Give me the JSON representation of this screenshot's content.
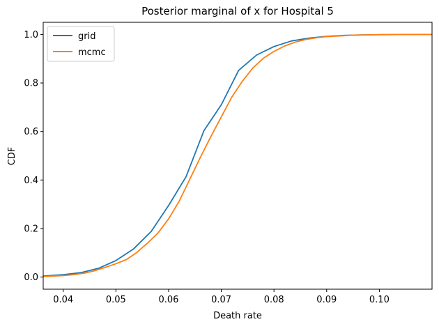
{
  "chart_data": {
    "type": "line",
    "title": "Posterior marginal of x for Hospital 5",
    "xlabel": "Death rate",
    "ylabel": "CDF",
    "xlim": [
      0.0362,
      0.11
    ],
    "ylim": [
      -0.05,
      1.05
    ],
    "xticks": [
      0.04,
      0.05,
      0.06,
      0.07,
      0.08,
      0.09,
      0.1
    ],
    "xtick_labels": [
      "0.04",
      "0.05",
      "0.06",
      "0.07",
      "0.08",
      "0.09",
      "0.10"
    ],
    "yticks": [
      0.0,
      0.2,
      0.4,
      0.6,
      0.8,
      1.0
    ],
    "ytick_labels": [
      "0.0",
      "0.2",
      "0.4",
      "0.6",
      "0.8",
      "1.0"
    ],
    "grid": false,
    "legend_position": "top-left",
    "series": [
      {
        "name": "grid",
        "color": "#1f77b4",
        "x": [
          0.0362,
          0.04,
          0.0433,
          0.0467,
          0.05,
          0.0533,
          0.0567,
          0.06,
          0.0633,
          0.0667,
          0.07,
          0.0733,
          0.0767,
          0.08,
          0.0833,
          0.0867,
          0.09,
          0.0933,
          0.0967,
          0.1,
          0.11
        ],
        "y": [
          0.004,
          0.01,
          0.018,
          0.036,
          0.068,
          0.115,
          0.188,
          0.295,
          0.413,
          0.603,
          0.71,
          0.852,
          0.915,
          0.95,
          0.973,
          0.985,
          0.992,
          0.996,
          0.998,
          0.999,
          1.0
        ]
      },
      {
        "name": "mcmc",
        "color": "#ff7f0e",
        "x": [
          0.0362,
          0.038,
          0.04,
          0.042,
          0.044,
          0.046,
          0.048,
          0.05,
          0.052,
          0.054,
          0.056,
          0.058,
          0.06,
          0.062,
          0.064,
          0.066,
          0.068,
          0.07,
          0.072,
          0.074,
          0.076,
          0.078,
          0.08,
          0.082,
          0.084,
          0.086,
          0.088,
          0.09,
          0.095,
          0.1,
          0.11
        ],
        "y": [
          0.002,
          0.004,
          0.006,
          0.01,
          0.016,
          0.026,
          0.04,
          0.055,
          0.072,
          0.102,
          0.14,
          0.182,
          0.24,
          0.312,
          0.402,
          0.492,
          0.578,
          0.66,
          0.742,
          0.807,
          0.862,
          0.902,
          0.93,
          0.952,
          0.968,
          0.979,
          0.986,
          0.991,
          0.997,
          0.999,
          1.0
        ]
      }
    ]
  }
}
